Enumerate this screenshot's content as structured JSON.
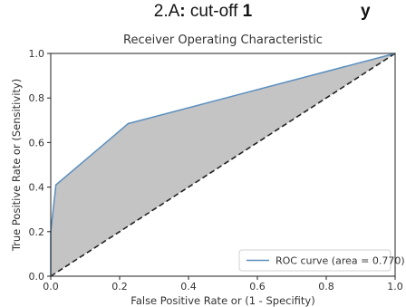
{
  "heading": {
    "prefix": "2.A",
    "colon": ":",
    "text": "cut-off",
    "cutoff_value": "1",
    "clipped_right": "y"
  },
  "chart_data": {
    "type": "line",
    "title": "Receiver Operating Characteristic",
    "xlabel": "False Positive Rate or (1 - Specifity)",
    "ylabel": "True Positive Rate or (Sensitivity)",
    "xlim": [
      0.0,
      1.0
    ],
    "ylim": [
      0.0,
      1.0
    ],
    "xticks": [
      "0.0",
      "0.2",
      "0.4",
      "0.6",
      "0.8",
      "1.0"
    ],
    "yticks": [
      "0.0",
      "0.2",
      "0.4",
      "0.6",
      "0.8",
      "1.0"
    ],
    "series": [
      {
        "name": "ROC curve (area = 0.770)",
        "x": [
          0.0,
          0.0,
          0.015,
          0.225,
          1.0
        ],
        "y": [
          0.0,
          0.2,
          0.41,
          0.685,
          1.0
        ],
        "color": "#5a8fc0"
      }
    ],
    "reference_line": {
      "x": [
        0.0,
        1.0
      ],
      "y": [
        0.0,
        1.0
      ],
      "style": "dashed",
      "color": "#222222"
    },
    "fill_between_color": "#c4c4c4",
    "legend": {
      "position": "lower-right",
      "entries": [
        "ROC curve (area = 0.770)"
      ]
    },
    "grid": false
  }
}
